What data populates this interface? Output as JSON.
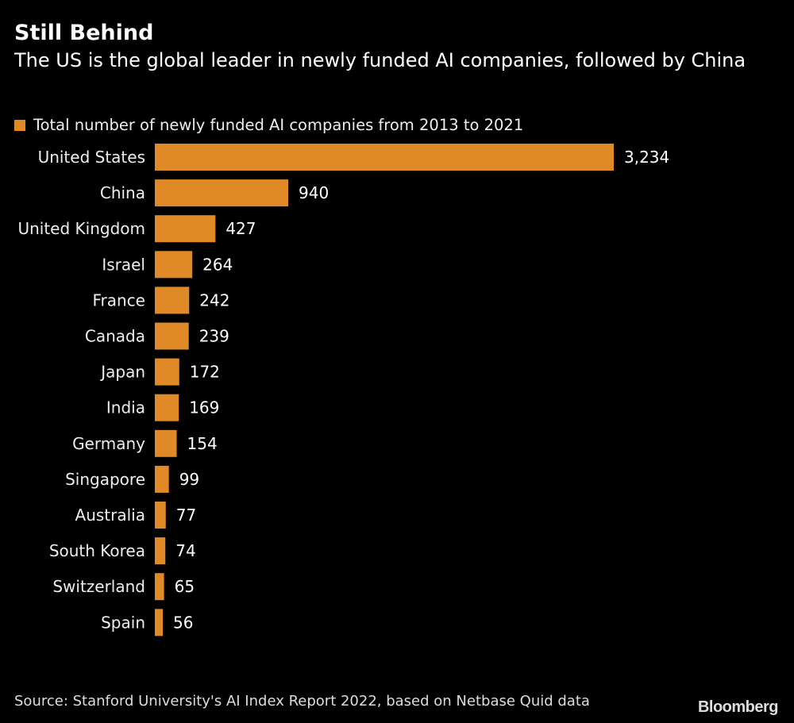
{
  "title": "Still Behind",
  "subtitle": "The US is the global leader in newly funded AI companies, followed by China",
  "source": "Source: Stanford University's AI Index Report 2022, based on Netbase Quid data",
  "logo": "Bloomberg",
  "colors": {
    "bar": "#e08a27",
    "background": "#000000"
  },
  "chart_data": {
    "type": "bar",
    "orientation": "horizontal",
    "legend": "top-left",
    "grid": false,
    "series": [
      {
        "name": "Total number of newly funded AI companies from 2013 to 2021",
        "values": [
          3234,
          940,
          427,
          264,
          242,
          239,
          172,
          169,
          154,
          99,
          77,
          74,
          65,
          56
        ]
      }
    ],
    "categories": [
      "United States",
      "China",
      "United Kingdom",
      "Israel",
      "France",
      "Canada",
      "Japan",
      "India",
      "Germany",
      "Singapore",
      "Australia",
      "South Korea",
      "Switzerland",
      "Spain"
    ],
    "value_labels": [
      "3,234",
      "940",
      "427",
      "264",
      "242",
      "239",
      "172",
      "169",
      "154",
      "99",
      "77",
      "74",
      "65",
      "56"
    ],
    "xlim": [
      0,
      3234
    ]
  }
}
